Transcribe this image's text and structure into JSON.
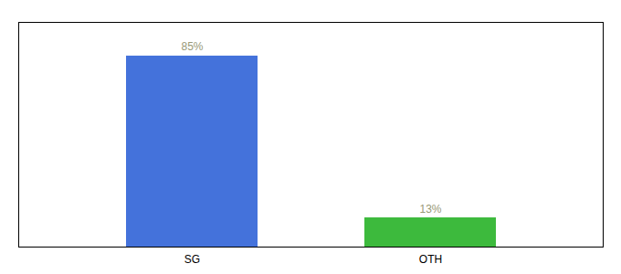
{
  "chart_data": {
    "type": "bar",
    "categories": [
      "SG",
      "OTH"
    ],
    "values": [
      85,
      13
    ],
    "colors": [
      "#4472db",
      "#3dba3d"
    ],
    "value_labels": [
      "85%",
      "13%"
    ],
    "data_labels": true,
    "ylim": [
      0,
      100
    ],
    "tick_labels": "x"
  }
}
